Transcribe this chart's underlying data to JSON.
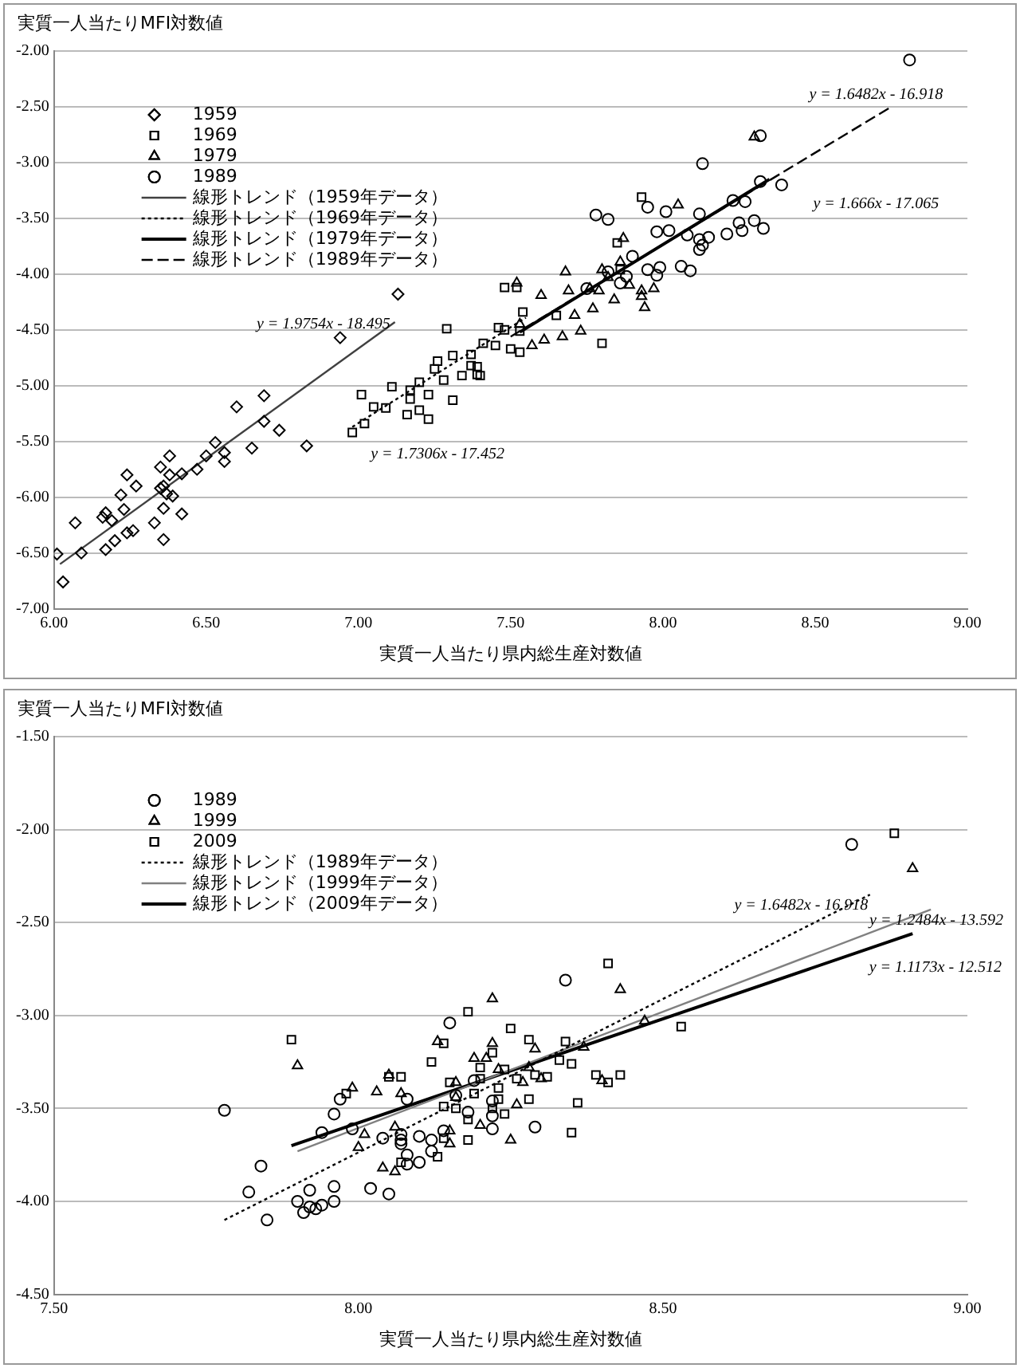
{
  "chart_data": [
    {
      "type": "scatter",
      "ylabel": "実質一人当たりMFI対数値",
      "xlabel": "実質一人当たり県内総生産対数値",
      "xlim": [
        6,
        9
      ],
      "xticks": [
        {
          "value": 6,
          "label": "6.00"
        },
        {
          "value": 6.5,
          "label": "6.50"
        },
        {
          "value": 7,
          "label": "7.00"
        },
        {
          "value": 7.5,
          "label": "7.50"
        },
        {
          "value": 8,
          "label": "8.00"
        },
        {
          "value": 8.5,
          "label": "8.50"
        },
        {
          "value": 9,
          "label": "9.00"
        }
      ],
      "ylim": [
        -7,
        -2
      ],
      "yticks": [
        {
          "value": -7,
          "label": "-7.00"
        },
        {
          "value": -6.5,
          "label": "-6.50"
        },
        {
          "value": -6,
          "label": "-6.00"
        },
        {
          "value": -5.5,
          "label": "-5.50"
        },
        {
          "value": -5,
          "label": "-5.00"
        },
        {
          "value": -4.5,
          "label": "-4.50"
        },
        {
          "value": -4,
          "label": "-4.00"
        },
        {
          "value": -3.5,
          "label": "-3.50"
        },
        {
          "value": -3,
          "label": "-3.00"
        },
        {
          "value": -2.5,
          "label": "-2.50"
        },
        {
          "value": -2,
          "label": "-2.00"
        }
      ],
      "grid": "y",
      "legend": "top left",
      "series": [
        {
          "name": "1959",
          "type": "scatter",
          "marker": "diamond",
          "color": "#000000",
          "x": [
            7.13,
            6.94,
            6.69,
            6.6,
            6.69,
            6.74,
            6.83,
            6.65,
            6.53,
            6.56,
            6.56,
            6.5,
            6.47,
            6.42,
            6.38,
            6.35,
            6.38,
            6.36,
            6.35,
            6.37,
            6.39,
            6.42,
            6.36,
            6.27,
            6.24,
            6.22,
            6.17,
            6.23,
            6.19,
            6.16,
            6.26,
            6.24,
            6.2,
            6.33,
            6.36,
            6.07,
            6.09,
            6.17,
            6.01,
            6.03
          ],
          "values": [
            -4.18,
            -4.57,
            -5.09,
            -5.19,
            -5.32,
            -5.4,
            -5.54,
            -5.56,
            -5.51,
            -5.6,
            -5.68,
            -5.63,
            -5.75,
            -5.79,
            -5.63,
            -5.73,
            -5.8,
            -5.9,
            -5.92,
            -5.97,
            -5.99,
            -6.15,
            -6.1,
            -5.9,
            -5.8,
            -5.98,
            -6.14,
            -6.11,
            -6.21,
            -6.18,
            -6.3,
            -6.32,
            -6.39,
            -6.23,
            -6.38,
            -6.23,
            -6.5,
            -6.47,
            -6.51,
            -6.76
          ]
        },
        {
          "name": "1969",
          "type": "scatter",
          "marker": "square",
          "color": "#000000",
          "x": [
            7.48,
            7.46,
            7.41,
            7.5,
            7.37,
            7.31,
            7.26,
            7.25,
            7.37,
            7.34,
            7.39,
            7.28,
            7.2,
            7.29,
            7.17,
            7.23,
            7.31,
            7.17,
            7.11,
            7.09,
            7.05,
            7.16,
            7.2,
            7.23,
            7.02,
            6.98,
            7.01,
            7.93,
            7.85,
            7.52,
            7.54,
            7.48,
            7.53,
            7.65,
            7.8,
            7.53,
            7.39,
            7.45,
            7.86,
            7.4
          ],
          "values": [
            -4.12,
            -4.48,
            -4.62,
            -4.67,
            -4.72,
            -4.73,
            -4.78,
            -4.85,
            -4.82,
            -4.91,
            -4.9,
            -4.95,
            -4.97,
            -4.49,
            -5.04,
            -5.08,
            -5.13,
            -5.12,
            -5.01,
            -5.2,
            -5.19,
            -5.26,
            -5.22,
            -5.3,
            -5.34,
            -5.42,
            -5.08,
            -3.31,
            -3.72,
            -4.12,
            -4.34,
            -4.5,
            -4.51,
            -4.37,
            -4.62,
            -4.7,
            -4.83,
            -4.64,
            -3.96,
            -4.91
          ]
        },
        {
          "name": "1979",
          "type": "scatter",
          "marker": "triangle",
          "color": "#000000",
          "x": [
            8.05,
            7.87,
            7.68,
            7.8,
            7.6,
            7.69,
            7.82,
            7.86,
            7.76,
            7.84,
            7.89,
            7.93,
            7.93,
            7.97,
            7.94,
            7.77,
            7.73,
            7.67,
            7.61,
            7.57,
            7.53,
            7.71,
            7.79,
            7.52,
            8.3
          ],
          "values": [
            -3.38,
            -3.68,
            -3.98,
            -3.96,
            -4.19,
            -4.15,
            -4.03,
            -3.89,
            -4.13,
            -4.23,
            -4.1,
            -4.15,
            -4.2,
            -4.13,
            -4.3,
            -4.31,
            -4.51,
            -4.56,
            -4.59,
            -4.64,
            -4.45,
            -4.37,
            -4.15,
            -4.08,
            -2.77
          ]
        },
        {
          "name": "1989",
          "type": "scatter",
          "marker": "circle",
          "color": "#000000",
          "x": [
            8.81,
            8.32,
            8.13,
            8.32,
            7.78,
            7.95,
            8.23,
            8.27,
            8.01,
            8.12,
            7.82,
            7.98,
            8.02,
            8.08,
            8.12,
            8.15,
            8.21,
            8.25,
            8.3,
            8.26,
            8.33,
            8.12,
            8.13,
            8.06,
            8.09,
            7.99,
            7.95,
            7.9,
            7.88,
            7.98,
            7.82,
            7.86,
            7.75,
            8.39
          ],
          "values": [
            -2.08,
            -2.76,
            -3.01,
            -3.17,
            -3.47,
            -3.4,
            -3.34,
            -3.35,
            -3.44,
            -3.46,
            -3.51,
            -3.62,
            -3.61,
            -3.65,
            -3.69,
            -3.67,
            -3.64,
            -3.54,
            -3.52,
            -3.61,
            -3.59,
            -3.78,
            -3.74,
            -3.93,
            -3.97,
            -3.94,
            -3.96,
            -3.84,
            -4.02,
            -4.01,
            -3.98,
            -4.08,
            -4.13,
            -3.2
          ]
        },
        {
          "name": "線形トレンド（1959年データ）",
          "type": "line",
          "marker": "none",
          "line_style": "solid",
          "color": "#404040",
          "x": [
            6.02,
            7.12
          ],
          "values": [
            -6.6,
            -4.43
          ]
        },
        {
          "name": "線形トレンド（1969年データ）",
          "type": "line",
          "marker": "none",
          "line_style": "dotted",
          "color": "#000000",
          "x": [
            6.98,
            7.55
          ],
          "values": [
            -5.37,
            -4.39
          ]
        },
        {
          "name": "線形トレンド（1979年データ）",
          "type": "line",
          "marker": "none",
          "line_style": "solid",
          "color": "#000000",
          "x": [
            7.53,
            8.35
          ],
          "values": [
            -4.52,
            -3.15
          ]
        },
        {
          "name": "線形トレンド（1989年データ）",
          "type": "line",
          "marker": "none",
          "line_style": "dashed",
          "color": "#000000",
          "x": [
            7.5,
            8.75
          ],
          "values": [
            -4.56,
            -2.5
          ]
        }
      ],
      "annotations": [
        "y = 1.6482x - 16.918",
        "y = 1.666x - 17.065",
        "y = 1.9754x - 18.495",
        "y = 1.7306x - 17.452"
      ]
    },
    {
      "type": "scatter",
      "ylabel": "実質一人当たりMFI対数値",
      "xlabel": "実質一人当たり県内総生産対数値",
      "xlim": [
        7.5,
        9
      ],
      "xticks": [
        {
          "value": 7.5,
          "label": "7.50"
        },
        {
          "value": 8,
          "label": "8.00"
        },
        {
          "value": 8.5,
          "label": "8.50"
        },
        {
          "value": 9,
          "label": "9.00"
        }
      ],
      "ylim": [
        -4.5,
        -1.5
      ],
      "yticks": [
        {
          "value": -4.5,
          "label": "-4.50"
        },
        {
          "value": -4,
          "label": "-4.00"
        },
        {
          "value": -3.5,
          "label": "-3.50"
        },
        {
          "value": -3,
          "label": "-3.00"
        },
        {
          "value": -2.5,
          "label": "-2.50"
        },
        {
          "value": -2,
          "label": "-2.00"
        },
        {
          "value": -1.5,
          "label": "-1.50"
        }
      ],
      "grid": "y",
      "legend": "top left",
      "series": [
        {
          "name": "1989",
          "type": "scatter",
          "marker": "circle",
          "color": "#000000",
          "x": [
            8.34,
            8.15,
            7.78,
            7.94,
            7.96,
            7.97,
            8.08,
            7.99,
            8.04,
            8.07,
            8.07,
            8.08,
            8.07,
            8.1,
            8.12,
            8.12,
            8.1,
            8.08,
            7.84,
            7.82,
            7.92,
            7.96,
            7.9,
            7.96,
            7.94,
            7.92,
            7.91,
            7.93,
            7.85,
            8.02,
            8.05,
            8.29,
            8.22,
            8.19,
            8.18,
            8.22,
            8.22,
            8.16,
            8.14,
            8.81
          ],
          "values": [
            -2.81,
            -3.04,
            -3.51,
            -3.63,
            -3.53,
            -3.45,
            -3.45,
            -3.61,
            -3.66,
            -3.64,
            -3.69,
            -3.75,
            -3.67,
            -3.65,
            -3.67,
            -3.73,
            -3.79,
            -3.8,
            -3.81,
            -3.95,
            -3.94,
            -3.92,
            -4.0,
            -4.0,
            -4.02,
            -4.03,
            -4.06,
            -4.04,
            -4.1,
            -3.93,
            -3.96,
            -3.6,
            -3.61,
            -3.35,
            -3.52,
            -3.46,
            -3.54,
            -3.43,
            -3.62,
            -2.08
          ]
        },
        {
          "name": "1999",
          "type": "scatter",
          "marker": "triangle",
          "color": "#000000",
          "x": [
            8.22,
            8.43,
            7.9,
            7.99,
            8.03,
            8.07,
            8.05,
            8.01,
            8.0,
            8.04,
            8.06,
            8.06,
            8.15,
            8.15,
            8.13,
            8.19,
            8.22,
            8.21,
            8.29,
            8.23,
            8.28,
            8.3,
            8.27,
            8.16,
            8.2,
            8.25,
            8.26,
            8.37,
            8.47,
            8.4,
            8.16,
            8.91
          ],
          "values": [
            -2.91,
            -2.86,
            -3.27,
            -3.39,
            -3.41,
            -3.42,
            -3.32,
            -3.64,
            -3.71,
            -3.82,
            -3.84,
            -3.6,
            -3.69,
            -3.62,
            -3.14,
            -3.23,
            -3.15,
            -3.23,
            -3.18,
            -3.29,
            -3.28,
            -3.34,
            -3.36,
            -3.36,
            -3.59,
            -3.67,
            -3.48,
            -3.17,
            -3.03,
            -3.35,
            -3.44,
            -2.21
          ]
        },
        {
          "name": "2009",
          "type": "scatter",
          "marker": "square",
          "color": "#000000",
          "x": [
            8.41,
            8.18,
            7.89,
            8.25,
            8.28,
            8.34,
            8.14,
            8.12,
            8.22,
            8.2,
            8.24,
            8.29,
            8.31,
            8.33,
            8.35,
            8.39,
            8.43,
            8.41,
            8.36,
            8.35,
            8.28,
            8.23,
            8.23,
            8.22,
            8.24,
            8.19,
            8.16,
            8.14,
            8.18,
            8.18,
            8.14,
            8.13,
            8.07,
            8.07,
            8.05,
            7.98,
            8.15,
            8.53,
            8.2,
            8.26,
            8.88
          ],
          "values": [
            -2.72,
            -2.98,
            -3.13,
            -3.07,
            -3.13,
            -3.14,
            -3.15,
            -3.25,
            -3.2,
            -3.28,
            -3.29,
            -3.32,
            -3.33,
            -3.24,
            -3.26,
            -3.32,
            -3.32,
            -3.36,
            -3.47,
            -3.63,
            -3.45,
            -3.39,
            -3.45,
            -3.5,
            -3.53,
            -3.42,
            -3.5,
            -3.49,
            -3.56,
            -3.67,
            -3.66,
            -3.76,
            -3.79,
            -3.33,
            -3.33,
            -3.42,
            -3.36,
            -3.06,
            -3.34,
            -3.34,
            -2.02
          ]
        },
        {
          "name": "線形トレンド（1989年データ）",
          "type": "line",
          "marker": "none",
          "line_style": "dotted",
          "color": "#000000",
          "x": [
            7.78,
            8.84
          ],
          "values": [
            -4.1,
            -2.35
          ]
        },
        {
          "name": "線形トレンド（1999年データ）",
          "type": "line",
          "marker": "none",
          "line_style": "solid",
          "color": "#808080",
          "x": [
            7.9,
            8.94
          ],
          "values": [
            -3.73,
            -2.43
          ]
        },
        {
          "name": "線形トレンド（2009年データ）",
          "type": "line",
          "marker": "none",
          "line_style": "solid",
          "color": "#000000",
          "x": [
            7.89,
            8.91
          ],
          "values": [
            -3.7,
            -2.56
          ]
        }
      ],
      "annotations": [
        "y = 1.6482x - 16.918",
        "y = 1.2484x - 13.592",
        "y = 1.1173x - 12.512"
      ]
    }
  ]
}
